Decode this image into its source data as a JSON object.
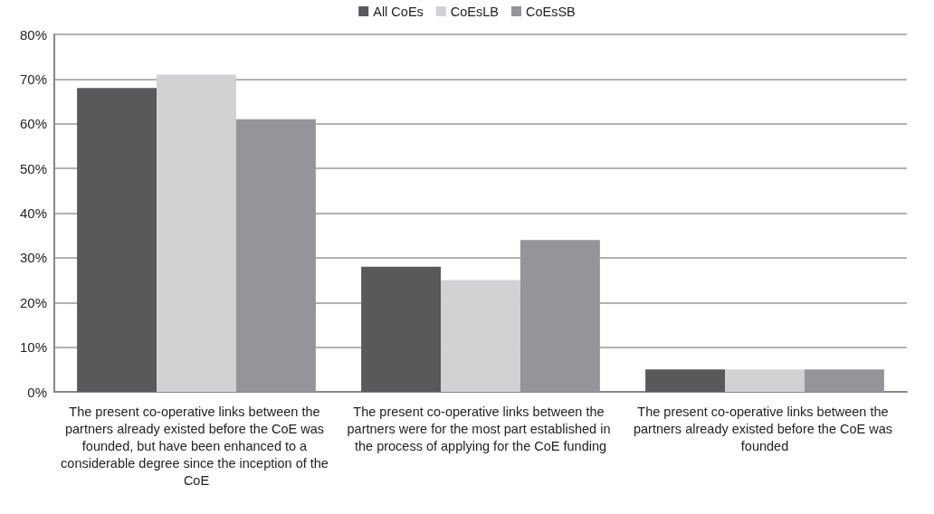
{
  "chart_data": {
    "type": "bar",
    "categories": [
      "The present co-operative links between the partners already existed before the CoE was founded, but have been enhanced to a considerable degree since the inception of the CoE",
      "The present co-operative links between the partners were for the most part established in the process of applying for the CoE funding",
      "The present co-operative links between the partners already existed before the CoE was founded"
    ],
    "series": [
      {
        "name": "All CoEs",
        "color": "#58595b",
        "values": [
          68,
          28,
          5
        ]
      },
      {
        "name": "CoEsLB",
        "color": "#d1d2d4",
        "values": [
          71,
          25,
          5
        ]
      },
      {
        "name": "CoEsSB",
        "color": "#949598",
        "values": [
          61,
          34,
          5
        ]
      }
    ],
    "ylim": [
      0,
      80
    ],
    "yticks": [
      {
        "value": 0,
        "label": "0%"
      },
      {
        "value": 10,
        "label": "10%"
      },
      {
        "value": 20,
        "label": "20%"
      },
      {
        "value": 30,
        "label": "30%"
      },
      {
        "value": 40,
        "label": "40%"
      },
      {
        "value": 50,
        "label": "50%"
      },
      {
        "value": 60,
        "label": "60%"
      },
      {
        "value": 70,
        "label": "70%"
      },
      {
        "value": 80,
        "label": "80%"
      }
    ],
    "grid": "y",
    "legend": "top"
  }
}
